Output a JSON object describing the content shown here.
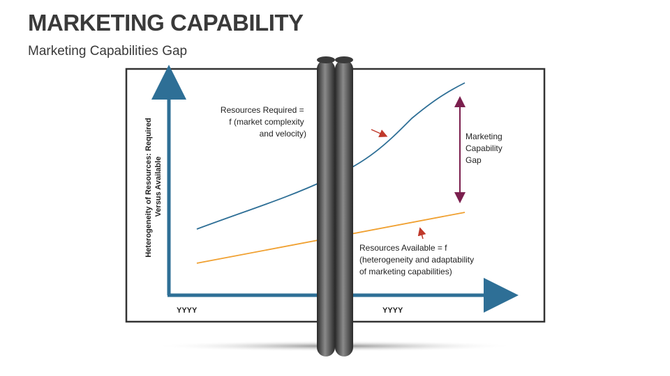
{
  "header": {
    "title": "MARKETING CAPABILITY",
    "subtitle": "Marketing Capabilities Gap"
  },
  "diagram": {
    "y_axis_label": [
      "Heterogeneity of Resources: Required",
      "Versus Available"
    ],
    "x_tick_left": "YYYY",
    "x_tick_right": "YYYY",
    "required_label": [
      "Resources Required =",
      "f (market complexity",
      "and velocity)"
    ],
    "available_label": [
      "Resources Available = f",
      "(heterogeneity and adaptability",
      "of marketing capabilities)"
    ],
    "gap_label": [
      "Marketing",
      "Capability",
      "Gap"
    ]
  },
  "colors": {
    "axis": "#2e6f96",
    "required_line": "#2e6f96",
    "available_line": "#f0a030",
    "gap_arrow": "#7b1f4e",
    "pointer_arrow": "#c0392b",
    "pole": "#4a4a4a",
    "frame": "#333333"
  }
}
